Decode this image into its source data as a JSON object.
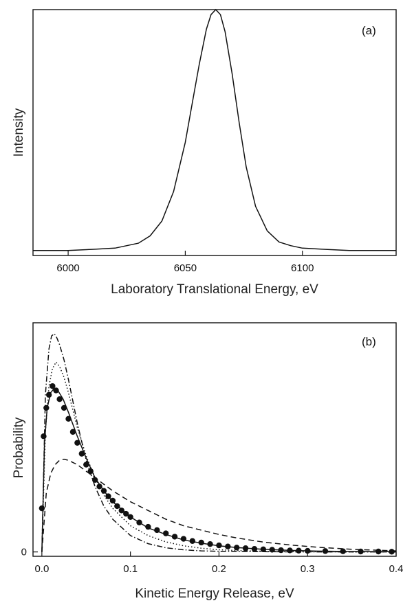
{
  "chart_data": [
    {
      "type": "line",
      "panel_label": "(a)",
      "xlabel": "Laboratory Translational Energy, eV",
      "ylabel": "Intensity",
      "xlim": [
        5985,
        6140
      ],
      "ylim": [
        0,
        1
      ],
      "x_ticks": [
        6000,
        6050,
        6100
      ],
      "x_tick_labels": [
        "6000",
        "6050",
        "6100"
      ],
      "y_ticks": [],
      "grid": false,
      "series": [
        {
          "style": "solid",
          "x": [
            5985,
            6000,
            6010,
            6020,
            6030,
            6035,
            6040,
            6045,
            6050,
            6053,
            6056,
            6059,
            6061,
            6063,
            6065,
            6067,
            6070,
            6073,
            6076,
            6080,
            6085,
            6090,
            6095,
            6100,
            6110,
            6120,
            6140
          ],
          "y": [
            0.02,
            0.02,
            0.025,
            0.03,
            0.05,
            0.08,
            0.14,
            0.26,
            0.46,
            0.62,
            0.78,
            0.92,
            0.98,
            1.0,
            0.98,
            0.91,
            0.74,
            0.54,
            0.36,
            0.2,
            0.1,
            0.055,
            0.04,
            0.03,
            0.025,
            0.02,
            0.02
          ]
        }
      ]
    },
    {
      "type": "line",
      "panel_label": "(b)",
      "xlabel": "Kinetic Energy Release, eV",
      "ylabel": "Probability",
      "xlim": [
        -0.01,
        0.4
      ],
      "ylim": [
        -0.02,
        1.05
      ],
      "x_ticks": [
        0.0,
        0.1,
        0.2,
        0.3,
        0.4
      ],
      "x_tick_labels": [
        "0.0",
        "0.1",
        "0.2",
        "0.3",
        "0.4"
      ],
      "y_ticks": [
        0
      ],
      "y_tick_labels": [
        "0"
      ],
      "grid": false,
      "series": [
        {
          "style": "points",
          "x": [
            0.0,
            0.002,
            0.005,
            0.008,
            0.012,
            0.016,
            0.02,
            0.025,
            0.03,
            0.035,
            0.04,
            0.045,
            0.05,
            0.055,
            0.06,
            0.065,
            0.07,
            0.075,
            0.08,
            0.085,
            0.09,
            0.095,
            0.1,
            0.11,
            0.12,
            0.13,
            0.14,
            0.15,
            0.16,
            0.17,
            0.18,
            0.19,
            0.2,
            0.21,
            0.22,
            0.23,
            0.24,
            0.25,
            0.26,
            0.27,
            0.28,
            0.29,
            0.3,
            0.32,
            0.34,
            0.36,
            0.38,
            0.395
          ],
          "y": [
            0.2,
            0.53,
            0.66,
            0.72,
            0.76,
            0.74,
            0.7,
            0.66,
            0.61,
            0.55,
            0.5,
            0.45,
            0.4,
            0.37,
            0.33,
            0.3,
            0.28,
            0.255,
            0.235,
            0.21,
            0.19,
            0.175,
            0.16,
            0.135,
            0.115,
            0.1,
            0.085,
            0.07,
            0.06,
            0.05,
            0.043,
            0.036,
            0.03,
            0.025,
            0.02,
            0.017,
            0.014,
            0.012,
            0.01,
            0.008,
            0.007,
            0.006,
            0.005,
            0.004,
            0.003,
            0.002,
            0.002,
            0.001
          ]
        },
        {
          "style": "solid",
          "x": [
            0.0,
            0.003,
            0.006,
            0.01,
            0.014,
            0.018,
            0.024,
            0.03,
            0.04,
            0.05,
            0.06,
            0.07,
            0.08,
            0.1,
            0.12,
            0.14,
            0.16,
            0.18,
            0.2,
            0.22,
            0.25,
            0.28,
            0.31,
            0.35,
            0.4
          ],
          "y": [
            0.0,
            0.5,
            0.66,
            0.73,
            0.75,
            0.74,
            0.7,
            0.64,
            0.53,
            0.43,
            0.34,
            0.28,
            0.23,
            0.16,
            0.11,
            0.08,
            0.055,
            0.04,
            0.028,
            0.02,
            0.012,
            0.007,
            0.004,
            0.002,
            0.001
          ]
        },
        {
          "style": "dashed",
          "x": [
            0.0,
            0.005,
            0.01,
            0.015,
            0.02,
            0.025,
            0.03,
            0.04,
            0.05,
            0.06,
            0.07,
            0.08,
            0.1,
            0.12,
            0.14,
            0.16,
            0.18,
            0.2,
            0.22,
            0.25,
            0.28,
            0.31,
            0.35,
            0.4
          ],
          "y": [
            0.0,
            0.27,
            0.36,
            0.4,
            0.42,
            0.425,
            0.42,
            0.4,
            0.37,
            0.34,
            0.31,
            0.28,
            0.23,
            0.19,
            0.15,
            0.12,
            0.1,
            0.08,
            0.064,
            0.045,
            0.032,
            0.022,
            0.012,
            0.005
          ]
        },
        {
          "style": "dotted",
          "x": [
            0.0,
            0.004,
            0.008,
            0.012,
            0.016,
            0.02,
            0.025,
            0.03,
            0.035,
            0.04,
            0.05,
            0.06,
            0.07,
            0.08,
            0.1,
            0.12,
            0.14,
            0.16,
            0.18,
            0.2,
            0.23,
            0.26,
            0.3,
            0.35,
            0.4
          ],
          "y": [
            0.0,
            0.55,
            0.76,
            0.84,
            0.87,
            0.85,
            0.8,
            0.73,
            0.65,
            0.57,
            0.44,
            0.34,
            0.26,
            0.2,
            0.12,
            0.075,
            0.046,
            0.028,
            0.017,
            0.01,
            0.005,
            0.002,
            0.001,
            0.0,
            0.0
          ]
        },
        {
          "style": "dash-dot",
          "x": [
            0.0,
            0.004,
            0.008,
            0.011,
            0.014,
            0.017,
            0.02,
            0.025,
            0.03,
            0.035,
            0.04,
            0.05,
            0.06,
            0.07,
            0.08,
            0.1,
            0.12,
            0.14,
            0.16,
            0.18,
            0.2,
            0.25,
            0.3,
            0.4
          ],
          "y": [
            0.0,
            0.72,
            0.93,
            0.99,
            1.0,
            0.98,
            0.95,
            0.88,
            0.79,
            0.69,
            0.59,
            0.42,
            0.3,
            0.21,
            0.15,
            0.075,
            0.038,
            0.019,
            0.01,
            0.005,
            0.003,
            0.001,
            0.0,
            0.0
          ]
        }
      ]
    }
  ]
}
